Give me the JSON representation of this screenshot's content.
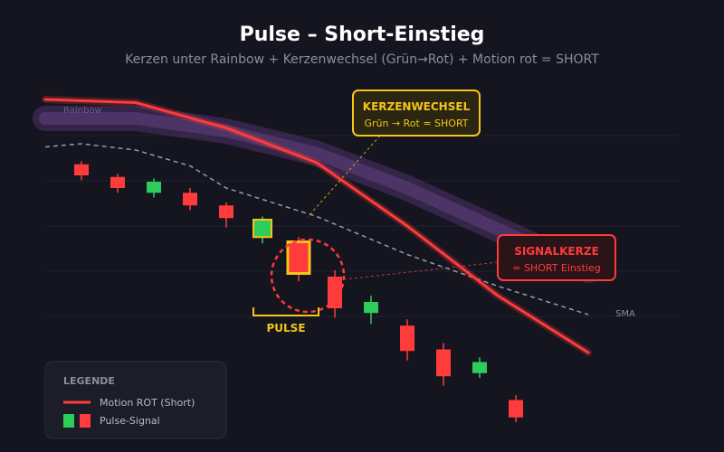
{
  "colors": {
    "background": "#14151f",
    "bull": "#2ecc5a",
    "bear": "#ff3b3b",
    "motion": "#ff3b3b",
    "rainbow": "#5b3a7a",
    "sma": "#9a9aa6",
    "pulse": "#f5c518",
    "grid": "#1f2130"
  },
  "chart_data": {
    "type": "candlestick",
    "title": "Pulse – Short-Einstieg",
    "subtitle": "Kerzen unter Rainbow + Kerzenwechsel (Grün→Rot) + Motion rot = SHORT",
    "grid": true,
    "y_axis_visible": false,
    "x_axis_visible": false,
    "candles": [
      {
        "i": 1,
        "open": 76,
        "close": 79.5,
        "high": 80.5,
        "low": 74.5,
        "dir": "bear"
      },
      {
        "i": 2,
        "open": 72,
        "close": 75.5,
        "high": 76.5,
        "low": 70.5,
        "dir": "bear"
      },
      {
        "i": 3,
        "open": 74,
        "close": 70.5,
        "high": 75,
        "low": 69,
        "dir": "bull"
      },
      {
        "i": 4,
        "open": 66.5,
        "close": 70.5,
        "high": 72,
        "low": 65,
        "dir": "bear"
      },
      {
        "i": 5,
        "open": 62.5,
        "close": 66.5,
        "high": 67.5,
        "low": 59.5,
        "dir": "bear"
      },
      {
        "i": 6,
        "open": 62,
        "close": 56.5,
        "high": 63,
        "low": 54.5,
        "dir": "bull",
        "highlight": "pulse-green"
      },
      {
        "i": 7,
        "open": 55,
        "close": 45,
        "high": 56.5,
        "low": 42.5,
        "dir": "bear",
        "highlight": "pulse-red"
      },
      {
        "i": 8,
        "open": 44,
        "close": 34,
        "high": 46,
        "low": 31,
        "dir": "bear"
      },
      {
        "i": 9,
        "open": 32.5,
        "close": 36,
        "high": 38,
        "low": 29,
        "dir": "bull"
      },
      {
        "i": 10,
        "open": 28.5,
        "close": 20.5,
        "high": 30.5,
        "low": 17.5,
        "dir": "bear"
      },
      {
        "i": 11,
        "open": 21,
        "close": 12.5,
        "high": 23,
        "low": 9.5,
        "dir": "bear"
      },
      {
        "i": 12,
        "open": 13.5,
        "close": 17,
        "high": 18.5,
        "low": 12,
        "dir": "bull"
      },
      {
        "i": 13,
        "open": 5,
        "close": -0.5,
        "high": 6.5,
        "low": -2,
        "dir": "bear"
      }
    ],
    "motion_line": {
      "name": "Motion ROT (Short)",
      "x": [
        0,
        2.5,
        5,
        7.5,
        10,
        12.5,
        15
      ],
      "y": [
        100,
        99,
        91,
        80,
        60,
        38,
        20
      ]
    },
    "rainbow_band": {
      "name": "Rainbow",
      "x": [
        0,
        2.5,
        5,
        7.5,
        10,
        12.5,
        15
      ],
      "y": [
        94,
        94,
        90,
        83,
        72,
        59,
        46
      ]
    },
    "sma_line": {
      "name": "SMA",
      "x": [
        0,
        1,
        2.5,
        4,
        5,
        7.5,
        10,
        12.5,
        15
      ],
      "y": [
        85,
        86,
        84,
        79,
        72,
        63,
        51,
        41,
        32
      ]
    }
  },
  "labels": {
    "rainbow": "Rainbow",
    "sma": "SMA",
    "pulse": "PULSE"
  },
  "callouts": {
    "kerzenwechsel": {
      "title": "KERZENWECHSEL",
      "text": "Grün → Rot = SHORT"
    },
    "signalkerze": {
      "title": "SIGNALKERZE",
      "text": "= SHORT Einstieg"
    }
  },
  "legend": {
    "title": "LEGENDE",
    "items": [
      {
        "label": "Motion ROT (Short)"
      },
      {
        "label": "Pulse-Signal"
      }
    ]
  }
}
